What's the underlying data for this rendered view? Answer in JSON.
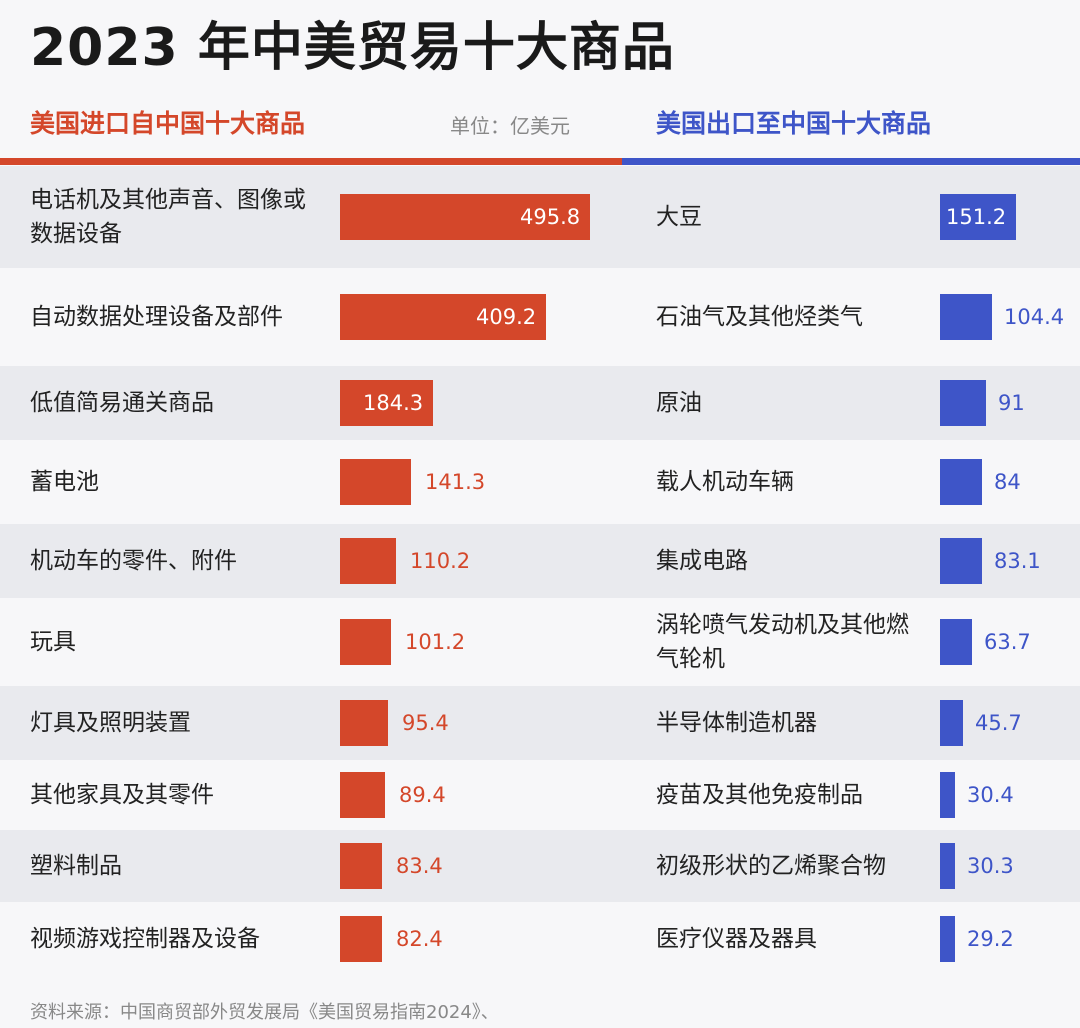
{
  "chart_data": [
    {
      "type": "bar",
      "title": "美国进口自中国十大商品",
      "categories": [
        "电话机及其他声音、图像或数据设备",
        "自动数据处理设备及部件",
        "低值简易通关商品",
        "蓄电池",
        "机动车的零件、附件",
        "玩具",
        "灯具及照明装置",
        "其他家具及其零件",
        "塑料制品",
        "视频游戏控制器及设备"
      ],
      "values": [
        495.8,
        409.2,
        184.3,
        141.3,
        110.2,
        101.2,
        95.4,
        89.4,
        83.4,
        82.4
      ],
      "value_labels": [
        "495.8",
        "409.2",
        "184.3",
        "141.3",
        "110.2",
        "101.2",
        "95.4",
        "89.4",
        "83.4",
        "82.4"
      ],
      "color": "#d4472a"
    },
    {
      "type": "bar",
      "title": "美国出口至中国十大商品",
      "categories": [
        "大豆",
        "石油气及其他烃类气",
        "原油",
        "载人机动车辆",
        "集成电路",
        "涡轮喷气发动机及其他燃气轮机",
        "半导体制造机器",
        "疫苗及其他免疫制品",
        "初级形状的乙烯聚合物",
        "医疗仪器及器具"
      ],
      "values": [
        151.2,
        104.4,
        91,
        84,
        83.1,
        63.7,
        45.7,
        30.4,
        30.3,
        29.2
      ],
      "value_labels": [
        "151.2",
        "104.4",
        "91",
        "84",
        "83.1",
        "63.7",
        "45.7",
        "30.4",
        "30.3",
        "29.2"
      ],
      "color": "#3e55c8"
    }
  ],
  "header": {
    "title": "2023 年中美贸易十大商品",
    "left_subtitle": "美国进口自中国十大商品",
    "unit": "单位：亿美元",
    "right_subtitle": "美国出口至中国十大商品"
  },
  "footer": {
    "source": "资料来源：中国商贸部外贸发展局《美国贸易指南2024》、"
  }
}
